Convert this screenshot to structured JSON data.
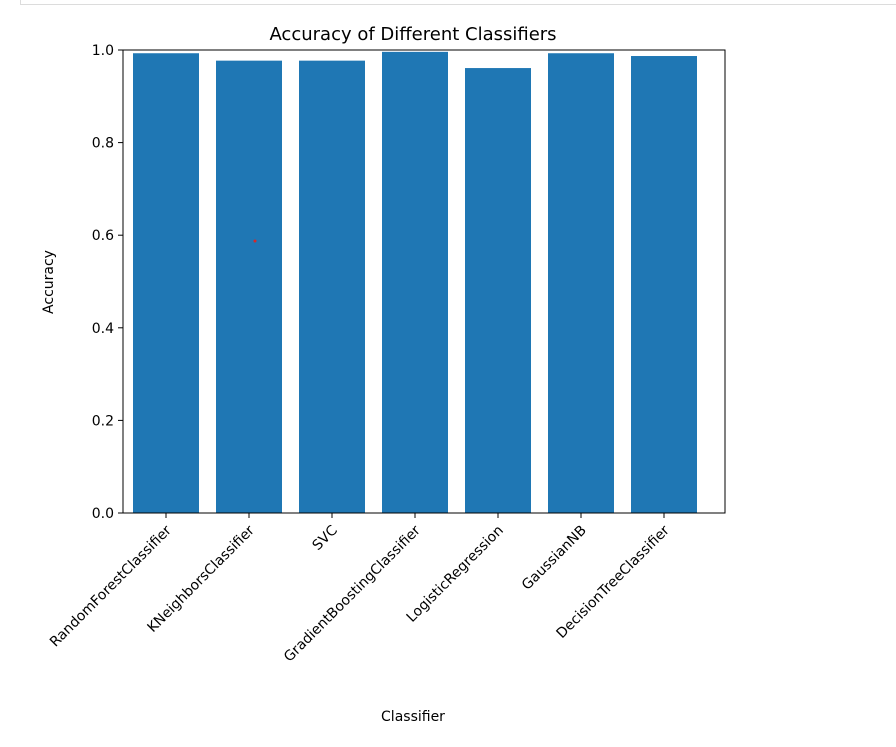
{
  "chart_data": {
    "type": "bar",
    "title": "Accuracy of Different Classifiers",
    "xlabel": "Classifier",
    "ylabel": "Accuracy",
    "categories": [
      "RandomForestClassifier",
      "KNeighborsClassifier",
      "SVC",
      "GradientBoostingClassifier",
      "LogisticRegression",
      "GaussianNB",
      "DecisionTreeClassifier"
    ],
    "values": [
      0.993,
      0.977,
      0.977,
      0.996,
      0.961,
      0.993,
      0.987
    ],
    "ylim": [
      0,
      1.0
    ],
    "yticks": [
      "0.0",
      "0.2",
      "0.4",
      "0.6",
      "0.8",
      "1.0"
    ],
    "grid": false,
    "bar_color": "#1f77b4"
  }
}
